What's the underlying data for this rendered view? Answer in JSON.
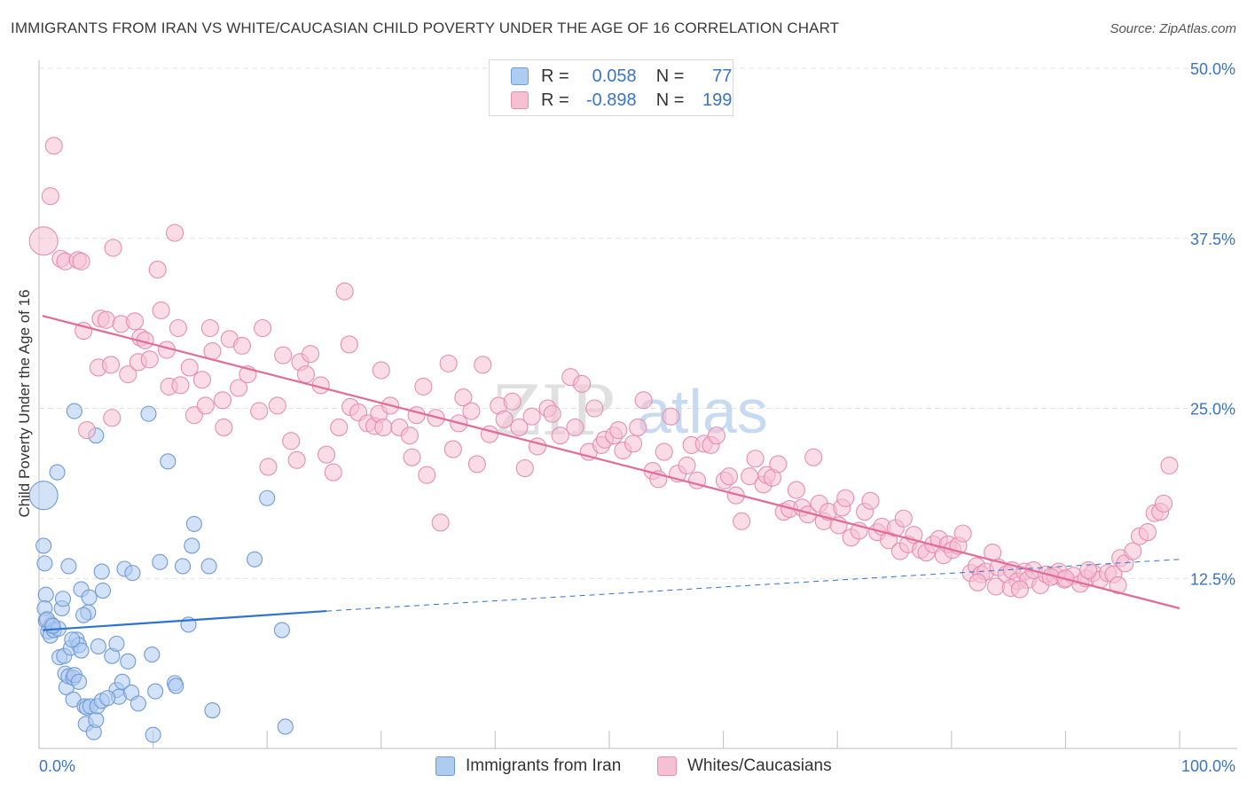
{
  "title": "IMMIGRANTS FROM IRAN VS WHITE/CAUCASIAN CHILD POVERTY UNDER THE AGE OF 16 CORRELATION CHART",
  "source": "Source: ZipAtlas.com",
  "watermark": {
    "zip": "ZIP",
    "atlas": "atlas"
  },
  "legend": {
    "series1": {
      "r_label": "R =",
      "r_value": "0.058",
      "n_label": "N =",
      "n_value": "77"
    },
    "series2": {
      "r_label": "R =",
      "r_value": "-0.898",
      "n_label": "N =",
      "n_value": "199"
    }
  },
  "colors": {
    "blue_fill": "#aecbf0",
    "blue_stroke": "#6f9bd6",
    "blue_line": "#2f72d0",
    "pink_fill": "#f6c0d3",
    "pink_stroke": "#e58fb0",
    "pink_line": "#e36b97",
    "axis_text": "#3a74c4",
    "grid": "#e3e3e3"
  },
  "chart_data": {
    "type": "scatter",
    "ylabel": "Child Poverty Under the Age of 16",
    "xlim": [
      0,
      100
    ],
    "ylim": [
      0,
      50
    ],
    "x_tick_labels": [
      "0.0%",
      "100.0%"
    ],
    "y_ticks": [
      12.5,
      25.0,
      37.5,
      50.0
    ],
    "y_tick_labels": [
      "12.5%",
      "25.0%",
      "37.5%",
      "50.0%"
    ],
    "grid": true,
    "series": [
      {
        "name": "Immigrants from Iran",
        "color": "#aecbf0",
        "trend": {
          "x0": 0.3,
          "y0": 8.7,
          "x1": 25.2,
          "y1": 10.1,
          "dashed_to_x": 100,
          "dashed_to_y": 13.9
        },
        "points": [
          [
            0.4,
            18.6
          ],
          [
            0.4,
            14.9
          ],
          [
            0.5,
            13.6
          ],
          [
            0.6,
            11.3
          ],
          [
            0.5,
            10.3
          ],
          [
            0.6,
            9.4
          ],
          [
            0.8,
            8.6
          ],
          [
            1.0,
            8.3
          ],
          [
            1.1,
            9.1
          ],
          [
            1.3,
            8.7
          ],
          [
            1.7,
            8.8
          ],
          [
            1.8,
            6.7
          ],
          [
            1.6,
            20.3
          ],
          [
            2.0,
            10.3
          ],
          [
            2.1,
            11.0
          ],
          [
            2.2,
            6.8
          ],
          [
            2.3,
            5.5
          ],
          [
            2.4,
            4.5
          ],
          [
            2.6,
            5.3
          ],
          [
            2.6,
            13.4
          ],
          [
            2.8,
            7.4
          ],
          [
            3.0,
            3.6
          ],
          [
            3.0,
            5.2
          ],
          [
            3.1,
            24.8
          ],
          [
            3.1,
            5.4
          ],
          [
            3.3,
            8.0
          ],
          [
            3.5,
            7.6
          ],
          [
            3.5,
            4.9
          ],
          [
            3.7,
            11.7
          ],
          [
            3.7,
            7.2
          ],
          [
            4.0,
            3.1
          ],
          [
            4.1,
            1.8
          ],
          [
            4.2,
            3.0
          ],
          [
            4.3,
            10.0
          ],
          [
            4.4,
            11.1
          ],
          [
            4.5,
            3.1
          ],
          [
            5.0,
            23.0
          ],
          [
            4.8,
            1.2
          ],
          [
            5.0,
            2.1
          ],
          [
            5.1,
            3.1
          ],
          [
            5.2,
            7.5
          ],
          [
            5.5,
            3.5
          ],
          [
            5.5,
            13.0
          ],
          [
            5.6,
            11.6
          ],
          [
            6.4,
            6.8
          ],
          [
            6.8,
            4.3
          ],
          [
            6.8,
            7.7
          ],
          [
            7.0,
            3.8
          ],
          [
            7.3,
            4.9
          ],
          [
            7.5,
            13.2
          ],
          [
            7.8,
            6.4
          ],
          [
            8.1,
            4.1
          ],
          [
            8.2,
            12.9
          ],
          [
            8.7,
            3.3
          ],
          [
            9.6,
            24.6
          ],
          [
            9.9,
            6.9
          ],
          [
            10.0,
            1.0
          ],
          [
            10.2,
            4.2
          ],
          [
            10.6,
            13.7
          ],
          [
            11.3,
            21.1
          ],
          [
            11.9,
            4.8
          ],
          [
            12.0,
            4.6
          ],
          [
            12.6,
            13.4
          ],
          [
            13.1,
            9.1
          ],
          [
            13.4,
            14.9
          ],
          [
            13.6,
            16.5
          ],
          [
            14.9,
            13.4
          ],
          [
            15.2,
            2.8
          ],
          [
            18.9,
            13.9
          ],
          [
            20.0,
            18.4
          ],
          [
            21.3,
            8.7
          ],
          [
            21.6,
            1.6
          ],
          [
            0.7,
            9.5
          ],
          [
            1.2,
            9.0
          ],
          [
            2.9,
            8.0
          ],
          [
            3.9,
            9.8
          ],
          [
            6.0,
            3.7
          ]
        ]
      },
      {
        "name": "Whites/Caucasians",
        "color": "#f6c0d3",
        "trend": {
          "x0": 0.3,
          "y0": 31.8,
          "x1": 100,
          "y1": 10.3
        },
        "points": [
          [
            0.4,
            37.3
          ],
          [
            1.0,
            40.6
          ],
          [
            1.3,
            44.3
          ],
          [
            1.9,
            36.0
          ],
          [
            2.3,
            35.8
          ],
          [
            3.4,
            35.9
          ],
          [
            3.7,
            35.8
          ],
          [
            3.9,
            30.7
          ],
          [
            4.2,
            23.4
          ],
          [
            5.2,
            28.0
          ],
          [
            5.4,
            31.6
          ],
          [
            5.9,
            31.5
          ],
          [
            6.4,
            24.3
          ],
          [
            6.3,
            28.2
          ],
          [
            6.5,
            36.8
          ],
          [
            7.2,
            31.2
          ],
          [
            7.8,
            27.5
          ],
          [
            8.4,
            31.4
          ],
          [
            8.7,
            28.4
          ],
          [
            8.9,
            30.2
          ],
          [
            9.3,
            30.0
          ],
          [
            9.7,
            28.6
          ],
          [
            10.4,
            35.2
          ],
          [
            10.7,
            32.2
          ],
          [
            11.2,
            29.3
          ],
          [
            11.4,
            26.6
          ],
          [
            11.9,
            37.9
          ],
          [
            12.2,
            30.9
          ],
          [
            12.4,
            26.7
          ],
          [
            13.2,
            28.0
          ],
          [
            13.6,
            24.5
          ],
          [
            14.3,
            27.1
          ],
          [
            14.6,
            25.2
          ],
          [
            15.0,
            30.9
          ],
          [
            15.2,
            29.2
          ],
          [
            16.1,
            25.6
          ],
          [
            16.2,
            23.6
          ],
          [
            16.7,
            30.1
          ],
          [
            17.5,
            26.5
          ],
          [
            17.8,
            29.6
          ],
          [
            18.3,
            27.5
          ],
          [
            19.3,
            24.8
          ],
          [
            19.6,
            30.9
          ],
          [
            20.1,
            20.7
          ],
          [
            20.9,
            25.2
          ],
          [
            21.4,
            28.9
          ],
          [
            22.1,
            22.6
          ],
          [
            22.6,
            21.2
          ],
          [
            22.9,
            28.4
          ],
          [
            23.4,
            27.5
          ],
          [
            23.8,
            29.0
          ],
          [
            24.7,
            26.7
          ],
          [
            25.2,
            21.6
          ],
          [
            25.8,
            20.3
          ],
          [
            26.3,
            23.6
          ],
          [
            26.8,
            33.6
          ],
          [
            27.2,
            29.7
          ],
          [
            27.3,
            25.1
          ],
          [
            28.0,
            24.7
          ],
          [
            28.8,
            23.9
          ],
          [
            29.4,
            23.7
          ],
          [
            29.8,
            24.6
          ],
          [
            30.0,
            27.8
          ],
          [
            30.2,
            23.6
          ],
          [
            30.8,
            25.2
          ],
          [
            31.6,
            23.6
          ],
          [
            32.5,
            23.0
          ],
          [
            32.7,
            21.4
          ],
          [
            33.1,
            24.5
          ],
          [
            33.7,
            26.6
          ],
          [
            34.0,
            20.1
          ],
          [
            34.8,
            24.3
          ],
          [
            35.2,
            16.6
          ],
          [
            35.9,
            28.3
          ],
          [
            36.3,
            22.0
          ],
          [
            36.8,
            23.9
          ],
          [
            37.2,
            25.8
          ],
          [
            37.9,
            24.8
          ],
          [
            38.4,
            20.9
          ],
          [
            38.9,
            28.2
          ],
          [
            39.5,
            23.1
          ],
          [
            40.3,
            25.2
          ],
          [
            40.8,
            24.2
          ],
          [
            41.5,
            25.5
          ],
          [
            42.1,
            23.6
          ],
          [
            42.6,
            20.6
          ],
          [
            43.2,
            24.4
          ],
          [
            43.7,
            22.2
          ],
          [
            44.6,
            25.0
          ],
          [
            45.0,
            24.6
          ],
          [
            45.7,
            23.0
          ],
          [
            46.6,
            27.3
          ],
          [
            47.0,
            23.6
          ],
          [
            47.6,
            26.8
          ],
          [
            48.2,
            21.8
          ],
          [
            48.7,
            25.0
          ],
          [
            49.3,
            22.3
          ],
          [
            49.6,
            22.7
          ],
          [
            50.4,
            23.0
          ],
          [
            50.8,
            23.4
          ],
          [
            51.2,
            21.9
          ],
          [
            52.1,
            22.4
          ],
          [
            52.5,
            23.6
          ],
          [
            53.0,
            25.6
          ],
          [
            53.8,
            20.4
          ],
          [
            54.3,
            19.8
          ],
          [
            54.8,
            21.8
          ],
          [
            55.4,
            24.4
          ],
          [
            56.0,
            20.2
          ],
          [
            56.8,
            20.8
          ],
          [
            57.2,
            22.3
          ],
          [
            57.7,
            19.7
          ],
          [
            58.3,
            22.4
          ],
          [
            58.9,
            22.3
          ],
          [
            59.4,
            23.0
          ],
          [
            60.1,
            19.7
          ],
          [
            60.5,
            20.0
          ],
          [
            61.1,
            18.6
          ],
          [
            61.6,
            16.7
          ],
          [
            62.3,
            20.0
          ],
          [
            62.8,
            21.3
          ],
          [
            63.5,
            19.4
          ],
          [
            63.8,
            20.1
          ],
          [
            64.3,
            19.9
          ],
          [
            64.8,
            20.9
          ],
          [
            65.3,
            17.4
          ],
          [
            65.8,
            17.6
          ],
          [
            66.4,
            19.0
          ],
          [
            66.9,
            17.7
          ],
          [
            67.4,
            17.2
          ],
          [
            67.9,
            21.4
          ],
          [
            68.4,
            18.0
          ],
          [
            68.8,
            16.7
          ],
          [
            69.2,
            17.4
          ],
          [
            70.1,
            16.4
          ],
          [
            70.4,
            17.7
          ],
          [
            70.7,
            18.4
          ],
          [
            71.2,
            15.5
          ],
          [
            71.9,
            16.0
          ],
          [
            72.4,
            17.4
          ],
          [
            72.9,
            18.2
          ],
          [
            73.5,
            15.9
          ],
          [
            73.9,
            16.3
          ],
          [
            74.5,
            15.3
          ],
          [
            75.1,
            16.2
          ],
          [
            75.5,
            14.5
          ],
          [
            75.8,
            16.9
          ],
          [
            76.2,
            15.0
          ],
          [
            76.7,
            15.7
          ],
          [
            77.3,
            14.6
          ],
          [
            77.8,
            14.4
          ],
          [
            78.4,
            15.0
          ],
          [
            78.9,
            15.4
          ],
          [
            79.3,
            14.2
          ],
          [
            79.7,
            15.0
          ],
          [
            80.1,
            14.6
          ],
          [
            80.6,
            14.9
          ],
          [
            81.0,
            15.8
          ],
          [
            81.7,
            12.9
          ],
          [
            82.2,
            13.4
          ],
          [
            82.6,
            12.8
          ],
          [
            83.0,
            13.0
          ],
          [
            83.6,
            14.4
          ],
          [
            84.1,
            13.3
          ],
          [
            84.8,
            12.8
          ],
          [
            85.3,
            13.1
          ],
          [
            85.8,
            12.3
          ],
          [
            86.4,
            13.0
          ],
          [
            86.7,
            12.4
          ],
          [
            87.2,
            13.1
          ],
          [
            87.8,
            12.0
          ],
          [
            88.3,
            12.8
          ],
          [
            89.1,
            12.7
          ],
          [
            89.4,
            13.0
          ],
          [
            89.9,
            12.4
          ],
          [
            90.7,
            12.7
          ],
          [
            91.3,
            12.1
          ],
          [
            91.8,
            12.5
          ],
          [
            92.4,
            12.9
          ],
          [
            93.0,
            12.4
          ],
          [
            93.7,
            12.9
          ],
          [
            94.2,
            12.8
          ],
          [
            94.8,
            14.0
          ],
          [
            95.2,
            13.6
          ],
          [
            95.9,
            14.5
          ],
          [
            96.5,
            15.6
          ],
          [
            97.2,
            15.9
          ],
          [
            97.8,
            17.3
          ],
          [
            98.3,
            17.4
          ],
          [
            98.6,
            18.0
          ],
          [
            99.1,
            20.8
          ],
          [
            82.3,
            12.2
          ],
          [
            83.9,
            11.9
          ],
          [
            85.2,
            11.8
          ],
          [
            86.0,
            11.7
          ],
          [
            88.7,
            12.6
          ],
          [
            90.0,
            12.5
          ],
          [
            92.0,
            13.1
          ],
          [
            94.6,
            12.0
          ]
        ]
      }
    ]
  }
}
